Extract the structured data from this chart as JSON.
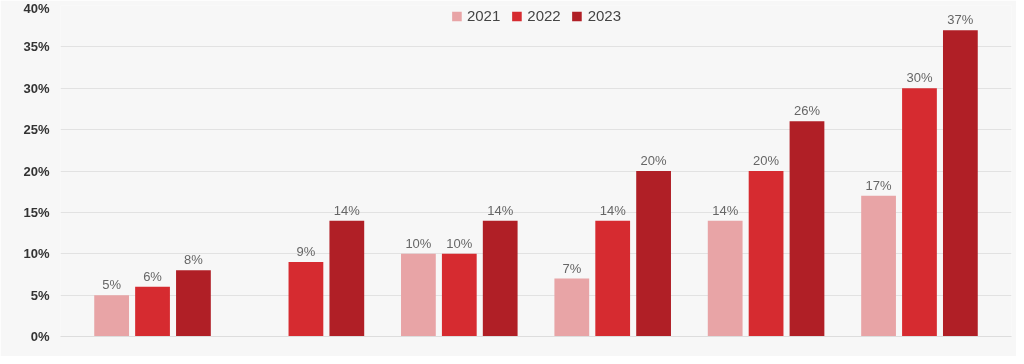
{
  "chart_data": {
    "type": "bar",
    "categories": [
      null,
      null,
      null,
      null,
      null,
      null
    ],
    "series": [
      {
        "name": "2021",
        "color": "#e8a4a6",
        "values": [
          5,
          null,
          10,
          7,
          14,
          17
        ],
        "value_labels": [
          "5%",
          null,
          "10%",
          "7%",
          "14%",
          "17%"
        ]
      },
      {
        "name": "2022",
        "color": "#d62b30",
        "values": [
          6,
          9,
          10,
          14,
          20,
          30
        ],
        "value_labels": [
          "6%",
          "9%",
          "10%",
          "14%",
          "20%",
          "30%"
        ]
      },
      {
        "name": "2023",
        "color": "#b01f26",
        "values": [
          8,
          14,
          14,
          20,
          26,
          37
        ],
        "value_labels": [
          "8%",
          "14%",
          "14%",
          "20%",
          "26%",
          "37%"
        ]
      }
    ],
    "ylim": [
      0,
      40
    ],
    "yticks": [
      {
        "value": 0,
        "label": "0%"
      },
      {
        "value": 5,
        "label": "5%"
      },
      {
        "value": 10,
        "label": "10%"
      },
      {
        "value": 15,
        "label": "15%"
      },
      {
        "value": 20,
        "label": "20%"
      },
      {
        "value": 25,
        "label": "25%"
      },
      {
        "value": 30,
        "label": "30%"
      },
      {
        "value": 35,
        "label": "35%"
      },
      {
        "value": 40,
        "label": "40%"
      }
    ],
    "grid": "y",
    "legend": "top",
    "tick_labels": "y"
  }
}
